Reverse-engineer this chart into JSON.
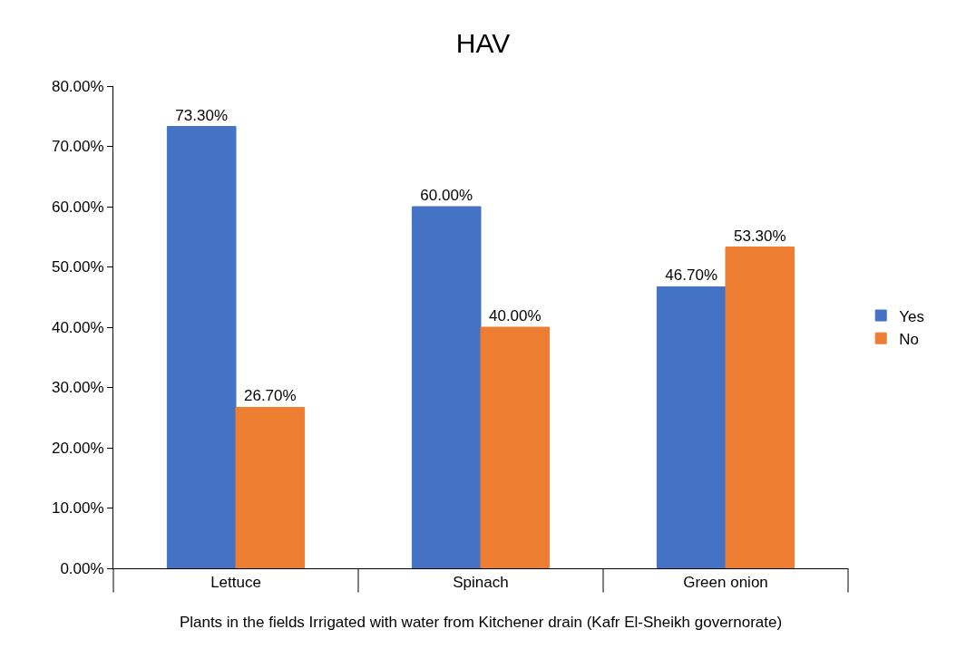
{
  "chart_data": {
    "type": "bar",
    "title": "HAV",
    "xlabel": "Plants in the fields Irrigated with water from Kitchener drain (Kafr El-Sheikh governorate)",
    "categories": [
      "Lettuce",
      "Spinach",
      "Green onion"
    ],
    "series": [
      {
        "name": "Yes",
        "color": "#4472c4",
        "values": [
          73.3,
          60,
          46.7
        ],
        "value_labels": [
          "73.30%",
          "60.00%",
          "46.70%"
        ]
      },
      {
        "name": "No",
        "color": "#ed7d31",
        "values": [
          26.7,
          40,
          53.3
        ],
        "value_labels": [
          "26.70%",
          "40.00%",
          "53.30%"
        ]
      }
    ],
    "ylim": [
      0,
      80
    ],
    "yticks": [
      {
        "value": 0,
        "label": "0.00%"
      },
      {
        "value": 10,
        "label": "10.00%"
      },
      {
        "value": 20,
        "label": "20.00%"
      },
      {
        "value": 30,
        "label": "30.00%"
      },
      {
        "value": 40,
        "label": "40.00%"
      },
      {
        "value": 50,
        "label": "50.00%"
      },
      {
        "value": 60,
        "label": "60.00%"
      },
      {
        "value": 70,
        "label": "70.00%"
      },
      {
        "value": 80,
        "label": "80.00%"
      }
    ],
    "grid": false,
    "legend": "right"
  }
}
